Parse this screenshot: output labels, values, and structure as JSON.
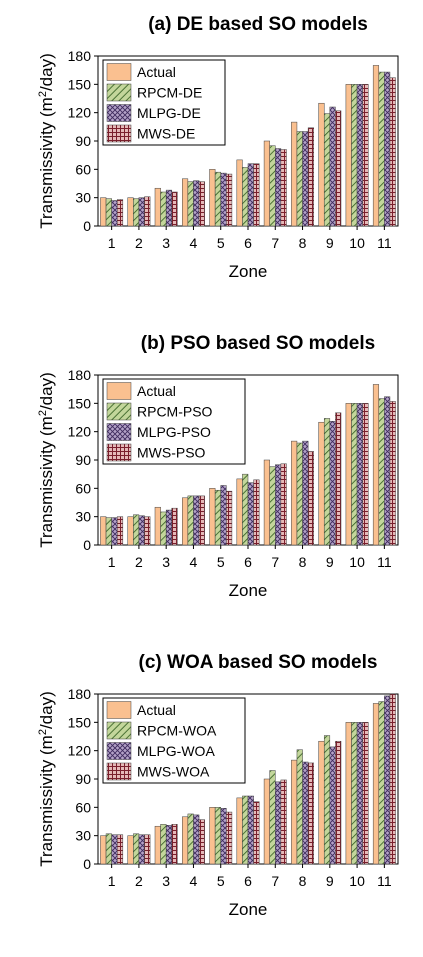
{
  "chart_data": [
    {
      "type": "bar",
      "title": "(a) DE based SO models",
      "xlabel": "Zone",
      "ylabel_main": "Transmissivity (m",
      "ylabel_sup": "2",
      "ylabel_tail": "/day)",
      "ylim": [
        0,
        180
      ],
      "yticks": [
        "0",
        "30",
        "60",
        "90",
        "120",
        "150",
        "180"
      ],
      "categories": [
        "1",
        "2",
        "3",
        "4",
        "5",
        "6",
        "7",
        "8",
        "9",
        "10",
        "11"
      ],
      "legend_position": "top-left",
      "series": [
        {
          "name": "Actual",
          "color": "#fac090",
          "pattern": "solid",
          "values": [
            30,
            30,
            40,
            50,
            60,
            70,
            90,
            110,
            130,
            150,
            170
          ]
        },
        {
          "name": "RPCM-DE",
          "color": "#c3d69b",
          "pattern": "diagonal",
          "values": [
            29,
            29,
            36,
            47,
            57,
            62,
            85,
            100,
            119,
            150,
            163
          ]
        },
        {
          "name": "MLPG-DE",
          "color": "#b3a2c7",
          "pattern": "crosshatch",
          "values": [
            27,
            30,
            38,
            48,
            56,
            66,
            82,
            100,
            126,
            150,
            163
          ]
        },
        {
          "name": "MWS-DE",
          "color": "#e6b9b8",
          "pattern": "grid",
          "values": [
            28,
            31,
            36,
            47,
            55,
            66,
            81,
            104,
            122,
            150,
            157
          ]
        }
      ]
    },
    {
      "type": "bar",
      "title": "(b) PSO based SO models",
      "xlabel": "Zone",
      "ylabel_main": "Transmissivity (m",
      "ylabel_sup": "2",
      "ylabel_tail": "/day)",
      "ylim": [
        0,
        180
      ],
      "yticks": [
        "0",
        "30",
        "60",
        "90",
        "120",
        "150",
        "180"
      ],
      "categories": [
        "1",
        "2",
        "3",
        "4",
        "5",
        "6",
        "7",
        "8",
        "9",
        "10",
        "11"
      ],
      "legend_position": "top-left",
      "series": [
        {
          "name": "Actual",
          "color": "#fac090",
          "pattern": "solid",
          "values": [
            30,
            30,
            40,
            50,
            60,
            70,
            90,
            110,
            130,
            150,
            170
          ]
        },
        {
          "name": "RPCM-PSO",
          "color": "#c3d69b",
          "pattern": "diagonal",
          "values": [
            29,
            32,
            35,
            52,
            58,
            75,
            83,
            108,
            134,
            150,
            155
          ]
        },
        {
          "name": "MLPG-PSO",
          "color": "#b3a2c7",
          "pattern": "crosshatch",
          "values": [
            29,
            31,
            37,
            52,
            63,
            66,
            85,
            110,
            131,
            150,
            157
          ]
        },
        {
          "name": "MWS-PSO",
          "color": "#e6b9b8",
          "pattern": "grid",
          "values": [
            30,
            30,
            39,
            52,
            57,
            69,
            86,
            99,
            140,
            150,
            152
          ]
        }
      ]
    },
    {
      "type": "bar",
      "title": "(c) WOA based SO models",
      "xlabel": "Zone",
      "ylabel_main": "Transmissivity (m",
      "ylabel_sup": "2",
      "ylabel_tail": "/day)",
      "ylim": [
        0,
        180
      ],
      "yticks": [
        "0",
        "30",
        "60",
        "90",
        "120",
        "150",
        "180"
      ],
      "categories": [
        "1",
        "2",
        "3",
        "4",
        "5",
        "6",
        "7",
        "8",
        "9",
        "10",
        "11"
      ],
      "legend_position": "top-left",
      "series": [
        {
          "name": "Actual",
          "color": "#fac090",
          "pattern": "solid",
          "values": [
            30,
            30,
            40,
            50,
            60,
            70,
            90,
            110,
            130,
            150,
            170
          ]
        },
        {
          "name": "RPCM-WOA",
          "color": "#c3d69b",
          "pattern": "diagonal",
          "values": [
            32,
            32,
            42,
            53,
            60,
            72,
            99,
            121,
            136,
            150,
            172
          ]
        },
        {
          "name": "MLPG-WOA",
          "color": "#b3a2c7",
          "pattern": "crosshatch",
          "values": [
            31,
            31,
            41,
            52,
            59,
            72,
            87,
            108,
            124,
            150,
            178
          ]
        },
        {
          "name": "MWS-WOA",
          "color": "#e6b9b8",
          "pattern": "grid",
          "values": [
            31,
            31,
            42,
            47,
            55,
            66,
            89,
            107,
            130,
            150,
            180
          ]
        }
      ]
    }
  ]
}
